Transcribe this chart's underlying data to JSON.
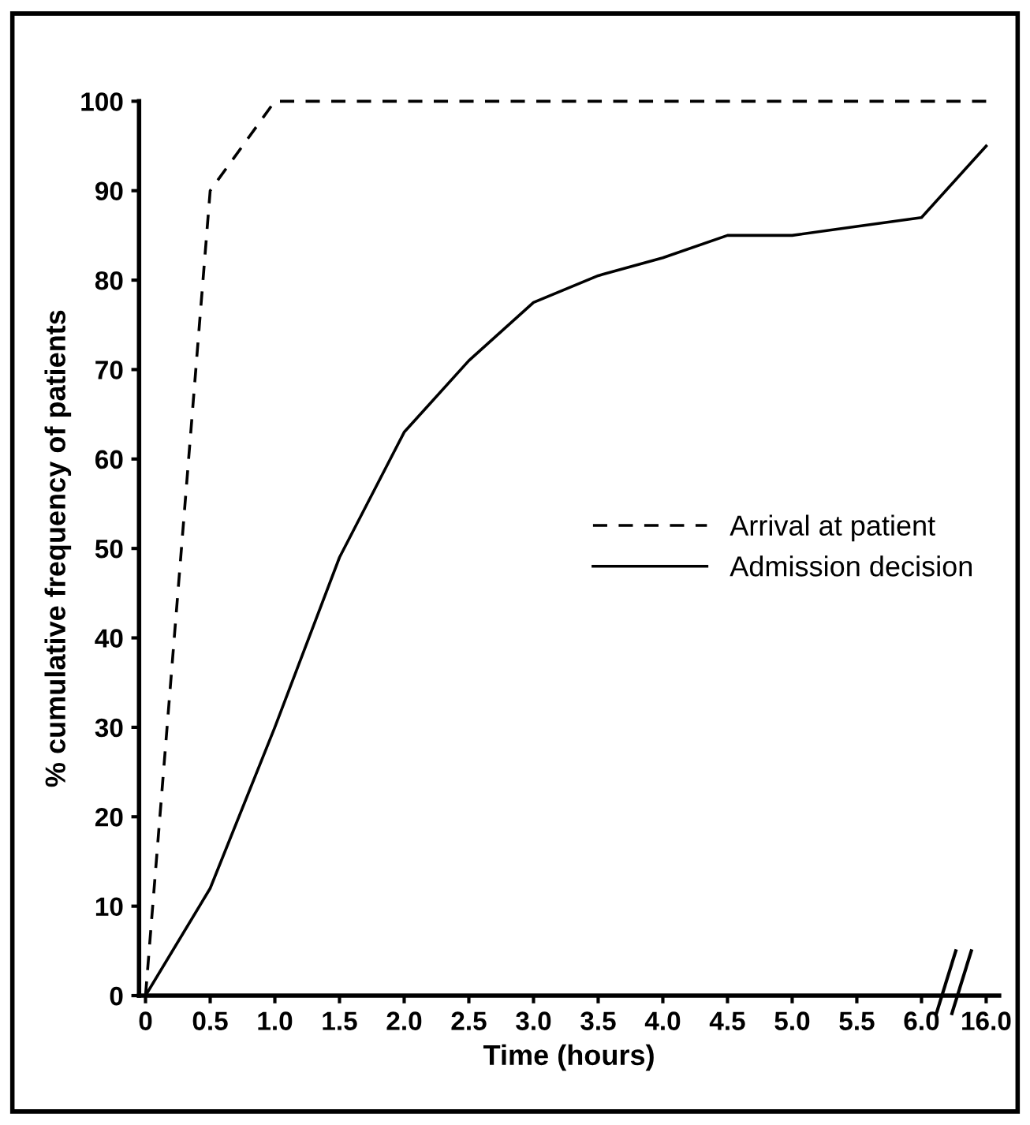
{
  "chart_data": {
    "type": "line",
    "xlabel": "Time (hours)",
    "ylabel": "% cumulative frequency of patients",
    "categories": [
      "0",
      "0.5",
      "1.0",
      "1.5",
      "2.0",
      "2.5",
      "3.0",
      "3.5",
      "4.0",
      "4.5",
      "5.0",
      "5.5",
      "6.0",
      "16.0"
    ],
    "series": [
      {
        "name": "Arrival at patient",
        "color": "#000000",
        "line_style": "dashed",
        "values": [
          0,
          90,
          100,
          100,
          100,
          100,
          100,
          100,
          100,
          100,
          100,
          100,
          100,
          100
        ]
      },
      {
        "name": "Admission decision",
        "color": "#000000",
        "line_style": "solid",
        "values": [
          0,
          12,
          30,
          49,
          63,
          71,
          77.5,
          80.5,
          82.5,
          85,
          85,
          86,
          87,
          95
        ]
      }
    ],
    "ylim": [
      0,
      100
    ],
    "yticks": [
      0,
      10,
      20,
      30,
      40,
      50,
      60,
      70,
      80,
      90,
      100
    ],
    "grid": false,
    "legend": "right",
    "marker": "none"
  }
}
